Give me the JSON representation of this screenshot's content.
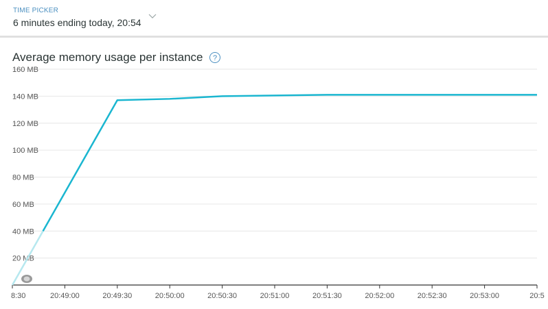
{
  "time_picker": {
    "label": "TIME PICKER",
    "value": "6 minutes ending today, 20:54",
    "icon": "chevron-down-icon"
  },
  "panel": {
    "title": "Average memory usage per instance",
    "help_glyph": "?"
  },
  "colors": {
    "series_line": "#1ab6d0",
    "series_faded": "#b6e8ef",
    "grid": "#e6e6e6",
    "axis": "#333333"
  },
  "chart_data": {
    "type": "line",
    "xlabel": "",
    "ylabel": "",
    "y_ticks": [
      "160 MB",
      "140 MB",
      "120 MB",
      "100 MB",
      "80 MB",
      "60 MB",
      "40 MB",
      "20 MB"
    ],
    "ylim": [
      0,
      160
    ],
    "x_ticks": [
      "8:30",
      "20:49:00",
      "20:49:30",
      "20:50:00",
      "20:50:30",
      "20:51:00",
      "20:51:30",
      "20:52:00",
      "20:52:30",
      "20:53:00",
      "20:5"
    ],
    "x_tick_values": [
      0,
      30,
      60,
      90,
      120,
      150,
      180,
      210,
      240,
      270,
      300
    ],
    "xlim": [
      0,
      300
    ],
    "grid": true,
    "series": [
      {
        "x": [
          0,
          60,
          90,
          120,
          150,
          180,
          210,
          240,
          270,
          300
        ],
        "values": [
          0,
          137,
          138,
          140,
          140.5,
          141,
          141,
          141,
          141,
          141
        ]
      }
    ]
  }
}
